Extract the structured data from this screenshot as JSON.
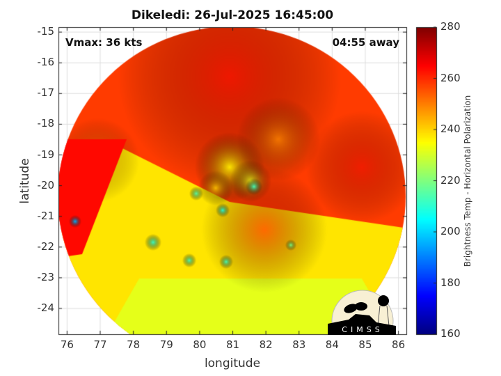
{
  "chart_data": {
    "type": "heatmap",
    "title": "Dikeledi: 26-Jul-2025 16:45:00",
    "xlabel": "longitude",
    "ylabel": "latitude",
    "xlim": [
      75.75,
      86.25
    ],
    "ylim": [
      -24.85,
      -14.85
    ],
    "xticks": [
      76,
      77,
      78,
      79,
      80,
      81,
      82,
      83,
      84,
      85,
      86
    ],
    "yticks": [
      -15,
      -16,
      -17,
      -18,
      -19,
      -20,
      -21,
      -22,
      -23,
      -24
    ],
    "grid": true,
    "colorbar": {
      "label": "Brightness Temp - Horizontal Polarization",
      "range": [
        160,
        280
      ],
      "ticks": [
        160,
        180,
        200,
        220,
        240,
        260,
        280
      ],
      "colormap": "jet"
    },
    "annotations": {
      "vmax": "Vmax: 36 kts",
      "time_away": "04:55 away"
    }
  },
  "logo": {
    "text": "CIMSS"
  }
}
